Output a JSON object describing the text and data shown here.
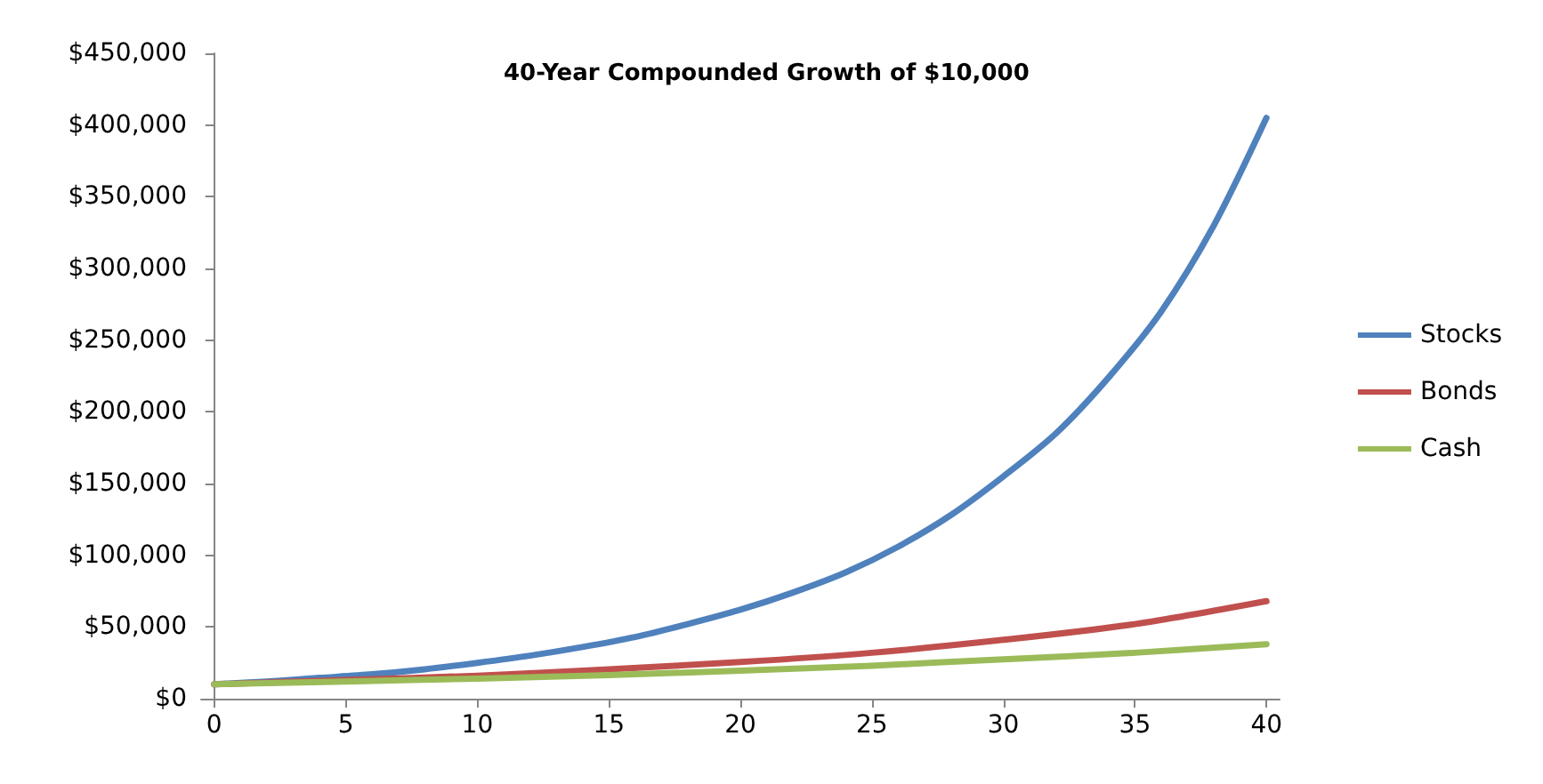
{
  "chart_data": {
    "type": "line",
    "title": "40-Year Compounded Growth of $10,000",
    "series": [
      {
        "name": "Stocks",
        "color": "#4f81bd",
        "x": [
          0,
          2,
          4,
          6,
          8,
          10,
          12,
          14,
          16,
          18,
          20,
          22,
          24,
          26,
          28,
          30,
          32,
          34,
          36,
          38,
          40
        ],
        "values": [
          10000,
          12000,
          14500,
          17000,
          20500,
          25000,
          30000,
          36000,
          43000,
          52000,
          62000,
          74000,
          88000,
          106000,
          128000,
          155000,
          185000,
          224000,
          270000,
          330000,
          405000
        ]
      },
      {
        "name": "Bonds",
        "color": "#c0504d",
        "x": [
          0,
          5,
          10,
          15,
          20,
          25,
          30,
          35,
          40
        ],
        "values": [
          10000,
          13000,
          16000,
          20500,
          25500,
          32000,
          41000,
          52000,
          68000
        ]
      },
      {
        "name": "Cash",
        "color": "#9bbb59",
        "x": [
          0,
          5,
          10,
          15,
          20,
          25,
          30,
          35,
          40
        ],
        "values": [
          10000,
          12000,
          14000,
          16500,
          19500,
          23000,
          27500,
          32000,
          38000
        ]
      }
    ],
    "xlim": [
      -0.5,
      40.5
    ],
    "xticks": [
      0,
      5,
      10,
      15,
      20,
      25,
      30,
      35,
      40
    ],
    "ylim": [
      0,
      450000
    ],
    "yticks": [
      {
        "value": 0,
        "label": "$0"
      },
      {
        "value": 50000,
        "label": "$50,000"
      },
      {
        "value": 100000,
        "label": "$100,000"
      },
      {
        "value": 150000,
        "label": "$150,000"
      },
      {
        "value": 200000,
        "label": "$200,000"
      },
      {
        "value": 250000,
        "label": "$250,000"
      },
      {
        "value": 300000,
        "label": "$300,000"
      },
      {
        "value": 350000,
        "label": "$350,000"
      },
      {
        "value": 400000,
        "label": "$400,000"
      },
      {
        "value": 450000,
        "label": "$450,000"
      }
    ],
    "grid": false,
    "legend": "right",
    "marker": "none",
    "line_style": "solid"
  }
}
